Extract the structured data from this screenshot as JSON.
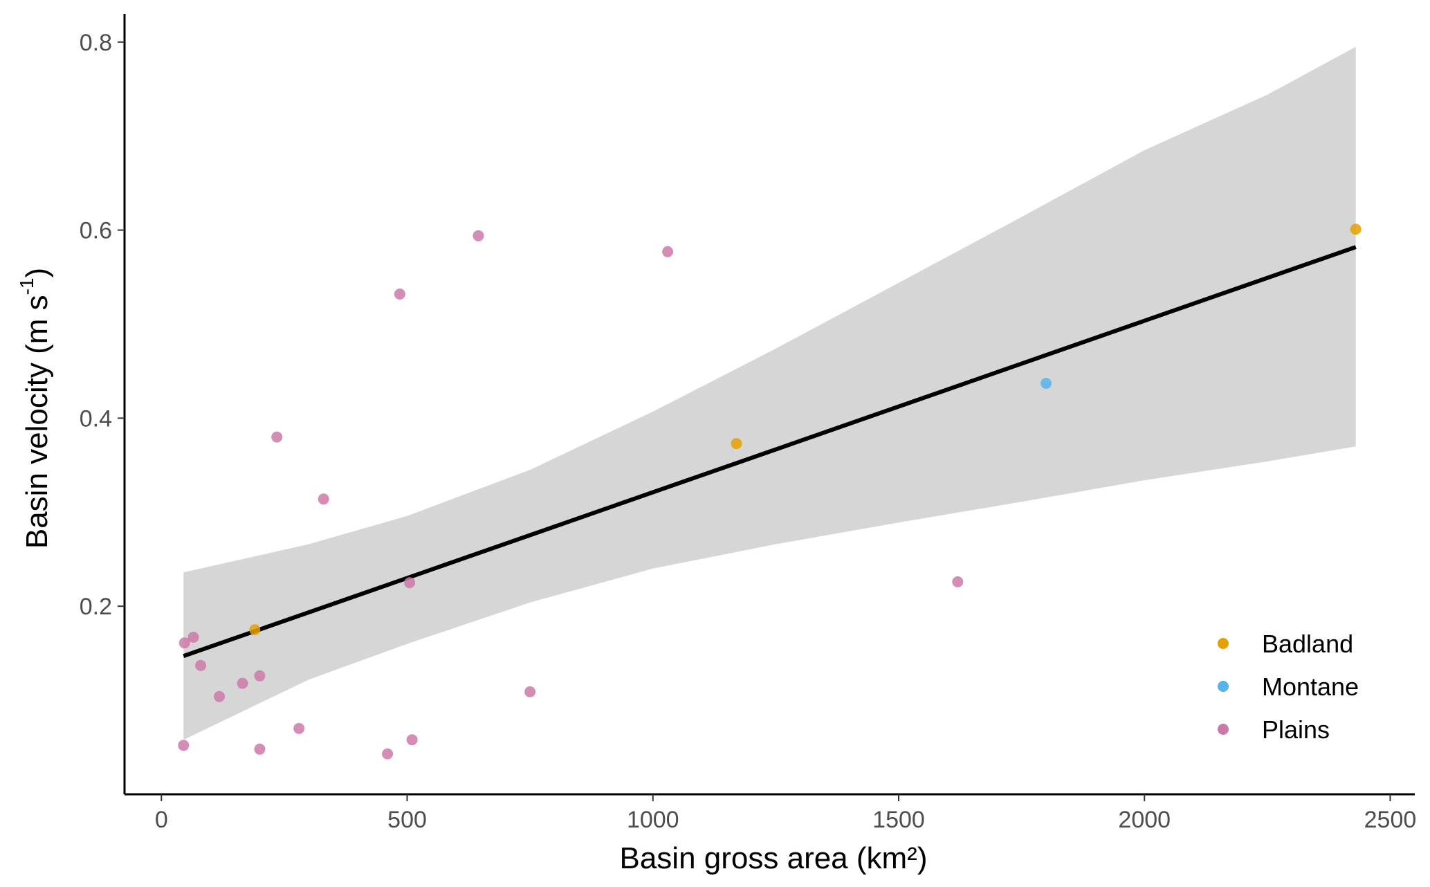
{
  "chart_data": {
    "type": "scatter",
    "xlabel": "Basin gross area (km²)",
    "ylabel": "Basin velocity (m s",
    "ylabel_superscript": "-1",
    "ylabel_close": ")",
    "xlim": [
      -75,
      2550
    ],
    "ylim": [
      0.0,
      0.83
    ],
    "x_ticks": [
      0,
      500,
      1000,
      1500,
      2000,
      2500
    ],
    "y_ticks": [
      0.2,
      0.4,
      0.6,
      0.8
    ],
    "x_tick_labels": [
      "0",
      "500",
      "1000",
      "1500",
      "2000",
      "2500"
    ],
    "y_tick_labels": [
      "0.2",
      "0.4",
      "0.6",
      "0.8"
    ],
    "grid": false,
    "legend_position": "bottom-right",
    "series": [
      {
        "name": "Badland",
        "color": "#E69F00",
        "points": [
          {
            "x": 190,
            "y": 0.175
          },
          {
            "x": 1170,
            "y": 0.373
          },
          {
            "x": 2430,
            "y": 0.601
          }
        ]
      },
      {
        "name": "Montane",
        "color": "#56B4E9",
        "points": [
          {
            "x": 1800,
            "y": 0.437
          }
        ]
      },
      {
        "name": "Plains",
        "color": "#CC79A7",
        "points": [
          {
            "x": 45,
            "y": 0.052
          },
          {
            "x": 47,
            "y": 0.161
          },
          {
            "x": 65,
            "y": 0.167
          },
          {
            "x": 80,
            "y": 0.137
          },
          {
            "x": 118,
            "y": 0.104
          },
          {
            "x": 165,
            "y": 0.118
          },
          {
            "x": 200,
            "y": 0.048
          },
          {
            "x": 200,
            "y": 0.126
          },
          {
            "x": 235,
            "y": 0.38
          },
          {
            "x": 280,
            "y": 0.07
          },
          {
            "x": 330,
            "y": 0.314
          },
          {
            "x": 460,
            "y": 0.043
          },
          {
            "x": 485,
            "y": 0.532
          },
          {
            "x": 505,
            "y": 0.225
          },
          {
            "x": 510,
            "y": 0.058
          },
          {
            "x": 645,
            "y": 0.594
          },
          {
            "x": 750,
            "y": 0.109
          },
          {
            "x": 1030,
            "y": 0.577
          },
          {
            "x": 1620,
            "y": 0.226
          }
        ]
      }
    ],
    "trend_line": {
      "color": "#000000",
      "x": [
        45,
        2430
      ],
      "y": [
        0.147,
        0.582
      ]
    },
    "confidence_band": {
      "color": "#d6d6d6",
      "x": [
        45,
        300,
        500,
        750,
        1000,
        1250,
        1500,
        1750,
        2000,
        2250,
        2430
      ],
      "upper": [
        0.236,
        0.266,
        0.296,
        0.345,
        0.407,
        0.474,
        0.544,
        0.614,
        0.685,
        0.744,
        0.795
      ],
      "lower": [
        0.058,
        0.122,
        0.16,
        0.204,
        0.24,
        0.266,
        0.289,
        0.311,
        0.334,
        0.354,
        0.37
      ]
    }
  }
}
